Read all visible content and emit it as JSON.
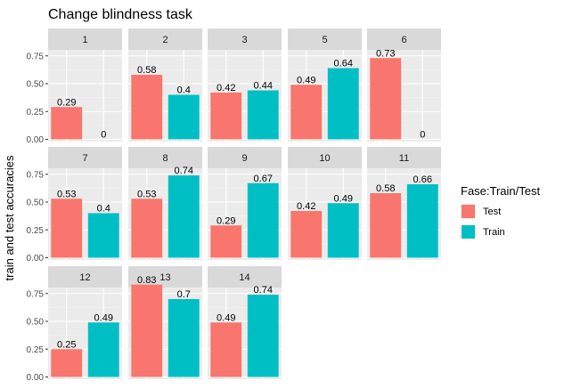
{
  "chart_data": {
    "type": "bar",
    "title": "Change blindness task",
    "ylabel": "train and test accuracies",
    "xlabel": "",
    "ylim": [
      0,
      0.8
    ],
    "yticks": [
      0.0,
      0.25,
      0.5,
      0.75
    ],
    "ytick_labels": [
      "0.00",
      "0.25",
      "0.50",
      "0.75"
    ],
    "grid": true,
    "legend": {
      "title": "Fase:Train/Test",
      "position": "right",
      "entries": [
        {
          "name": "Test",
          "color": "#F8766D"
        },
        {
          "name": "Train",
          "color": "#00BFC4"
        }
      ]
    },
    "series": [
      {
        "name": "Test",
        "color": "#F8766D"
      },
      {
        "name": "Train",
        "color": "#00BFC4"
      }
    ],
    "facets": [
      {
        "label": "1",
        "values": [
          0.29,
          0
        ],
        "labels": [
          "0.29",
          "0"
        ]
      },
      {
        "label": "2",
        "values": [
          0.58,
          0.4
        ],
        "labels": [
          "0.58",
          "0.4"
        ]
      },
      {
        "label": "3",
        "values": [
          0.42,
          0.44
        ],
        "labels": [
          "0.42",
          "0.44"
        ]
      },
      {
        "label": "5",
        "values": [
          0.49,
          0.64
        ],
        "labels": [
          "0.49",
          "0.64"
        ]
      },
      {
        "label": "6",
        "values": [
          0.73,
          0
        ],
        "labels": [
          "0.73",
          "0"
        ]
      },
      {
        "label": "7",
        "values": [
          0.53,
          0.4
        ],
        "labels": [
          "0.53",
          "0.4"
        ]
      },
      {
        "label": "8",
        "values": [
          0.53,
          0.74
        ],
        "labels": [
          "0.53",
          "0.74"
        ]
      },
      {
        "label": "9",
        "values": [
          0.29,
          0.67
        ],
        "labels": [
          "0.29",
          "0.67"
        ]
      },
      {
        "label": "10",
        "values": [
          0.42,
          0.49
        ],
        "labels": [
          "0.42",
          "0.49"
        ]
      },
      {
        "label": "11",
        "values": [
          0.58,
          0.66
        ],
        "labels": [
          "0.58",
          "0.66"
        ]
      },
      {
        "label": "12",
        "values": [
          0.25,
          0.49
        ],
        "labels": [
          "0.25",
          "0.49"
        ]
      },
      {
        "label": "13",
        "values": [
          0.83,
          0.7
        ],
        "labels": [
          "0.83",
          "0.7"
        ]
      },
      {
        "label": "14",
        "values": [
          0.49,
          0.74
        ],
        "labels": [
          "0.49",
          "0.74"
        ]
      }
    ]
  }
}
